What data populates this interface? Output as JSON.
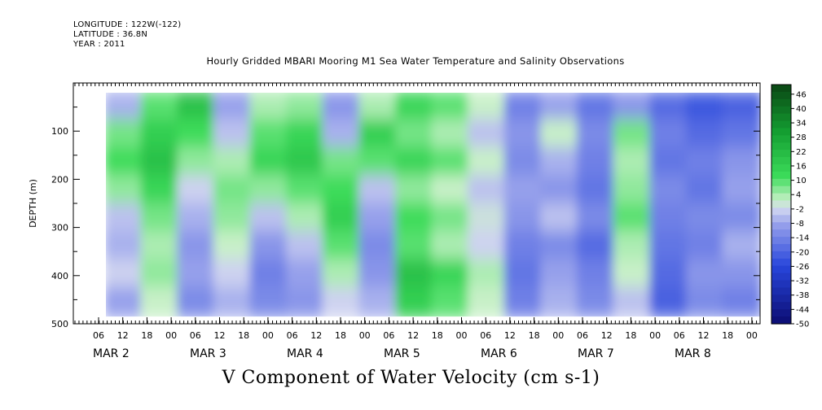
{
  "header": {
    "longitude": "LONGITUDE : 122W(-122)",
    "latitude": "LATITUDE : 36.8N",
    "year": "YEAR : 2011"
  },
  "chart_data": {
    "type": "heatmap",
    "title": "Hourly Gridded MBARI Mooring M1 Sea Water Temperature and Salinity Observations",
    "xlabel": "V Component of Water Velocity (cm s-1)",
    "ylabel": "DEPTH (m)",
    "ylim": [
      500,
      0
    ],
    "y_ticks": [
      100,
      200,
      300,
      400,
      500
    ],
    "x_hour_ticks": [
      "06",
      "12",
      "18",
      "00",
      "06",
      "12",
      "18",
      "00",
      "06",
      "12",
      "18",
      "00",
      "06",
      "12",
      "18",
      "00",
      "06",
      "12",
      "18",
      "00",
      "06",
      "12",
      "18",
      "00",
      "06",
      "12",
      "18",
      "00"
    ],
    "day_labels": [
      "MAR  2",
      "MAR  3",
      "MAR  4",
      "MAR  5",
      "MAR  6",
      "MAR  7",
      "MAR  8"
    ],
    "colorbar_labels": [
      "46",
      "40",
      "34",
      "28",
      "22",
      "16",
      "10",
      "4",
      "-2",
      "-8",
      "-14",
      "-20",
      "-26",
      "-32",
      "-38",
      "-44",
      "-50"
    ],
    "colorbar_range": [
      -50,
      50
    ],
    "colorbar_step": 3,
    "data_extent_depth": [
      20,
      485
    ],
    "columns": [
      {
        "day": "MAR 2",
        "profile": [
          -6,
          8,
          12,
          6,
          -4,
          -6,
          -2,
          -8
        ]
      },
      {
        "day": "MAR 2",
        "profile": [
          10,
          16,
          20,
          14,
          8,
          4,
          6,
          2
        ]
      },
      {
        "day": "MAR 3",
        "profile": [
          20,
          12,
          6,
          -2,
          -6,
          -10,
          -8,
          -12
        ]
      },
      {
        "day": "MAR 3",
        "profile": [
          -8,
          -4,
          4,
          8,
          6,
          2,
          -2,
          -6
        ]
      },
      {
        "day": "MAR 3",
        "profile": [
          4,
          10,
          14,
          6,
          -4,
          -10,
          -14,
          -12
        ]
      },
      {
        "day": "MAR 4",
        "profile": [
          6,
          14,
          18,
          10,
          4,
          -4,
          -8,
          -10
        ]
      },
      {
        "day": "MAR 4",
        "profile": [
          -10,
          -6,
          8,
          12,
          16,
          10,
          4,
          -2
        ]
      },
      {
        "day": "MAR 4",
        "profile": [
          4,
          16,
          10,
          -4,
          -8,
          -12,
          -10,
          -6
        ]
      },
      {
        "day": "MAR 5",
        "profile": [
          14,
          8,
          14,
          6,
          12,
          10,
          20,
          16
        ]
      },
      {
        "day": "MAR 5",
        "profile": [
          10,
          4,
          10,
          2,
          8,
          4,
          14,
          10
        ]
      },
      {
        "day": "MAR 5",
        "profile": [
          2,
          -4,
          2,
          -4,
          0,
          -2,
          4,
          2
        ]
      },
      {
        "day": "MAR 6",
        "profile": [
          -14,
          -10,
          -12,
          -8,
          -10,
          -14,
          -16,
          -14
        ]
      },
      {
        "day": "MAR 6",
        "profile": [
          -8,
          2,
          -6,
          -10,
          -4,
          -12,
          -8,
          -6
        ]
      },
      {
        "day": "MAR 6",
        "profile": [
          -16,
          -12,
          -14,
          -16,
          -12,
          -18,
          -14,
          -12
        ]
      },
      {
        "day": "MAR 7",
        "profile": [
          -10,
          8,
          4,
          6,
          10,
          4,
          2,
          -4
        ]
      },
      {
        "day": "MAR 7",
        "profile": [
          -18,
          -14,
          -16,
          -12,
          -14,
          -16,
          -18,
          -20
        ]
      },
      {
        "day": "MAR 8",
        "profile": [
          -22,
          -18,
          -14,
          -16,
          -12,
          -14,
          -10,
          -12
        ]
      },
      {
        "day": "MAR 8",
        "profile": [
          -20,
          -16,
          -10,
          -8,
          -12,
          -6,
          -10,
          -14
        ]
      }
    ]
  }
}
